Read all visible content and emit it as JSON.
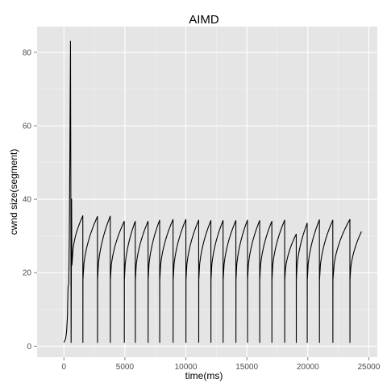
{
  "chart_data": {
    "type": "line",
    "title": "AIMD",
    "xlabel": "time(ms)",
    "ylabel": "cwnd size(segment)",
    "xlim": [
      -2200,
      25700
    ],
    "ylim": [
      -3,
      87
    ],
    "x_ticks": [
      0,
      5000,
      10000,
      15000,
      20000,
      25000
    ],
    "y_ticks": [
      0,
      20,
      40,
      60,
      80
    ],
    "grid": true,
    "colors": {
      "panel": "#e5e5e5",
      "grid_major": "#ffffff",
      "grid_minor": "#f2f2f2",
      "line": "#000000"
    },
    "series": [
      {
        "startup_points": [
          [
            0,
            1
          ],
          [
            140,
            2
          ],
          [
            220,
            4
          ],
          [
            290,
            8
          ],
          [
            340,
            16
          ],
          [
            400,
            17
          ],
          [
            450,
            32
          ],
          [
            500,
            60
          ],
          [
            540,
            83
          ],
          [
            570,
            40
          ],
          [
            590,
            1
          ],
          [
            630,
            40
          ],
          [
            650,
            22
          ],
          [
            680,
            23
          ]
        ],
        "sawtooth": {
          "start_x": 680,
          "start_y": 23,
          "peaks": [
            [
              1550,
              35.5
            ],
            [
              2750,
              35.3
            ],
            [
              3800,
              35.4
            ],
            [
              4950,
              34
            ],
            [
              5850,
              34
            ],
            [
              6900,
              34
            ],
            [
              7850,
              34.3
            ],
            [
              8950,
              34.5
            ],
            [
              10000,
              34.5
            ],
            [
              11050,
              34.3
            ],
            [
              12050,
              34.2
            ],
            [
              13050,
              34.2
            ],
            [
              14100,
              34.2
            ],
            [
              15050,
              34.3
            ],
            [
              16050,
              34.2
            ],
            [
              17050,
              34
            ],
            [
              18100,
              34.3
            ],
            [
              19050,
              30.5
            ],
            [
              19950,
              33.5
            ],
            [
              20950,
              34.4
            ],
            [
              22050,
              34.3
            ],
            [
              23450,
              34.5
            ],
            [
              24400,
              31.2
            ]
          ],
          "drop_min": 1,
          "restart_y": 18
        }
      }
    ]
  }
}
